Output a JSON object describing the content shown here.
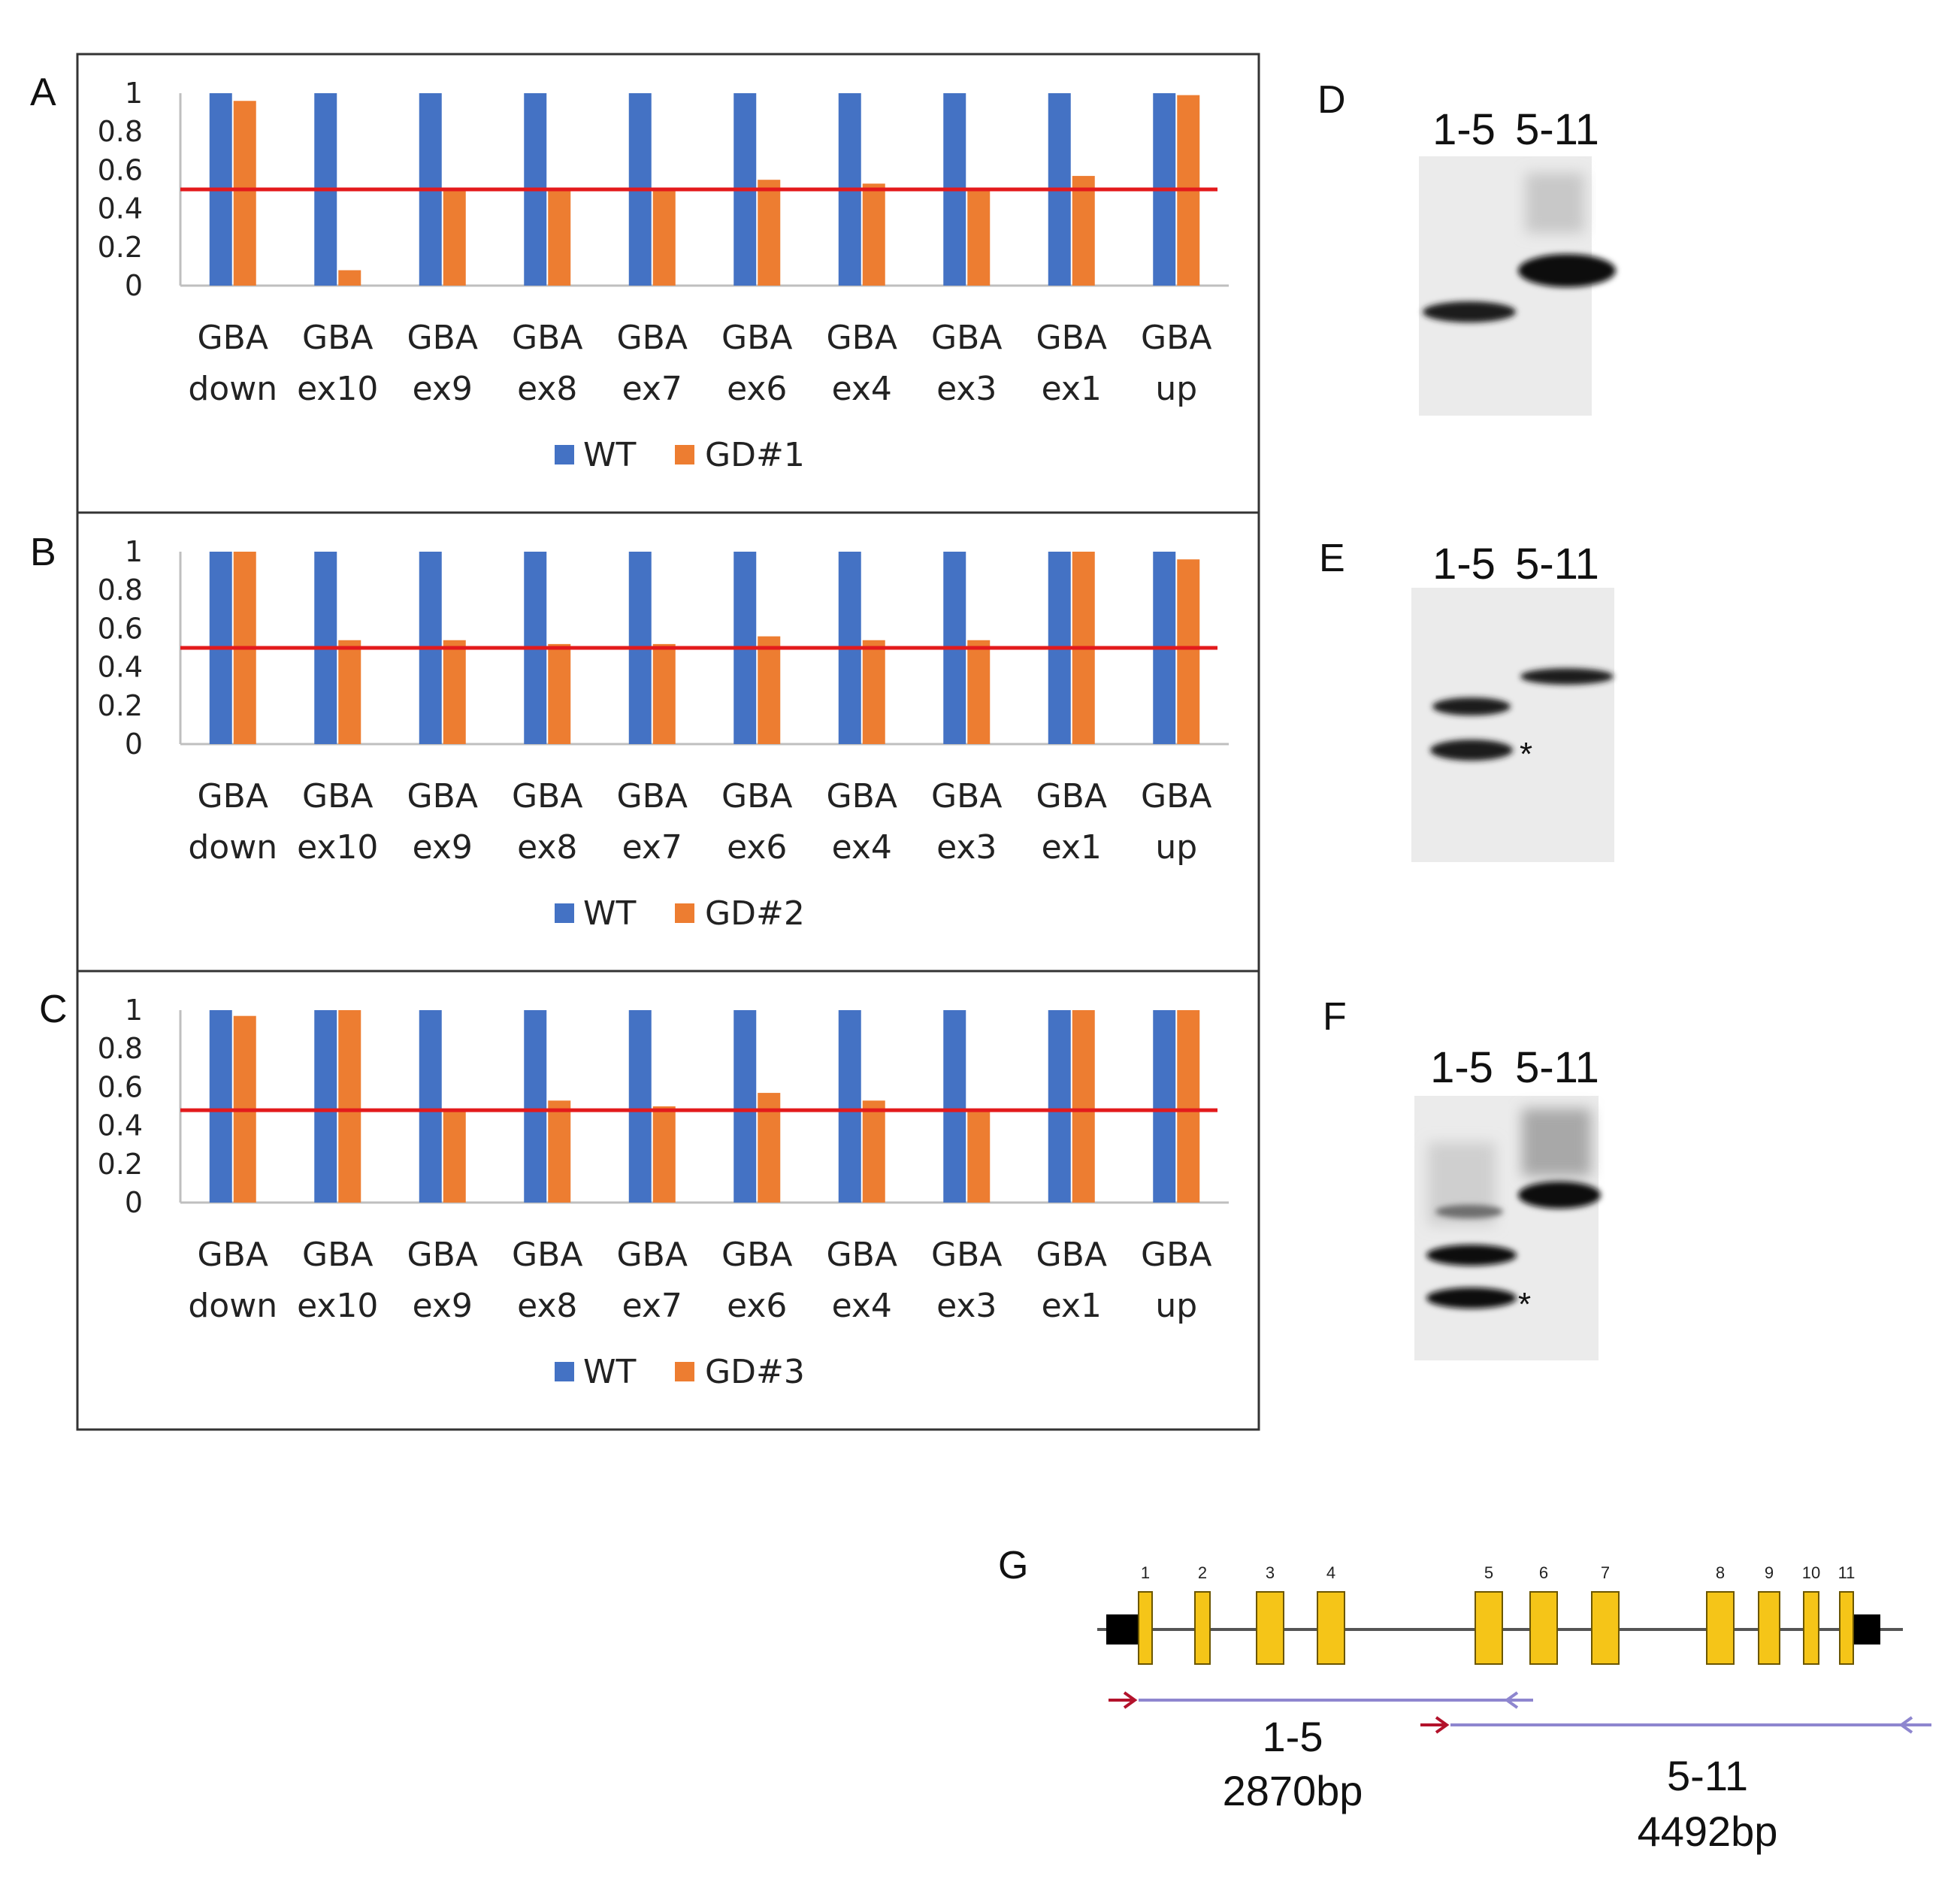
{
  "panels": {
    "A": "A",
    "B": "B",
    "C": "C",
    "D": "D",
    "E": "E",
    "F": "F",
    "G": "G"
  },
  "colors": {
    "wt": "#4472C4",
    "gd": "#ED7D31",
    "threshold": "#E31A1C"
  },
  "chart_data": [
    {
      "type": "bar",
      "panel": "A",
      "categories": [
        [
          "GBA",
          "down"
        ],
        [
          "GBA",
          "ex10"
        ],
        [
          "GBA",
          "ex9"
        ],
        [
          "GBA",
          "ex8"
        ],
        [
          "GBA",
          "ex7"
        ],
        [
          "GBA",
          "ex6"
        ],
        [
          "GBA",
          "ex4"
        ],
        [
          "GBA",
          "ex3"
        ],
        [
          "GBA",
          "ex1"
        ],
        [
          "GBA",
          "up"
        ]
      ],
      "series": [
        {
          "name": "WT",
          "values": [
            1,
            1,
            1,
            1,
            1,
            1,
            1,
            1,
            1,
            1
          ]
        },
        {
          "name": "GD#1",
          "values": [
            0.96,
            0.08,
            0.5,
            0.5,
            0.5,
            0.55,
            0.53,
            0.5,
            0.57,
            0.99
          ]
        }
      ],
      "threshold": 0.5,
      "yticks": [
        "1",
        "0.8",
        "0.6",
        "0.4",
        "0.2",
        "0"
      ],
      "ylim": [
        0,
        1
      ]
    },
    {
      "type": "bar",
      "panel": "B",
      "categories": [
        [
          "GBA",
          "down"
        ],
        [
          "GBA",
          "ex10"
        ],
        [
          "GBA",
          "ex9"
        ],
        [
          "GBA",
          "ex8"
        ],
        [
          "GBA",
          "ex7"
        ],
        [
          "GBA",
          "ex6"
        ],
        [
          "GBA",
          "ex4"
        ],
        [
          "GBA",
          "ex3"
        ],
        [
          "GBA",
          "ex1"
        ],
        [
          "GBA",
          "up"
        ]
      ],
      "series": [
        {
          "name": "WT",
          "values": [
            1,
            1,
            1,
            1,
            1,
            1,
            1,
            1,
            1,
            1
          ]
        },
        {
          "name": "GD#2",
          "values": [
            1.0,
            0.54,
            0.54,
            0.52,
            0.52,
            0.56,
            0.54,
            0.54,
            1.0,
            0.96
          ]
        }
      ],
      "threshold": 0.5,
      "yticks": [
        "1",
        "0.8",
        "0.6",
        "0.4",
        "0.2",
        "0"
      ],
      "ylim": [
        0,
        1
      ]
    },
    {
      "type": "bar",
      "panel": "C",
      "categories": [
        [
          "GBA",
          "down"
        ],
        [
          "GBA",
          "ex10"
        ],
        [
          "GBA",
          "ex9"
        ],
        [
          "GBA",
          "ex8"
        ],
        [
          "GBA",
          "ex7"
        ],
        [
          "GBA",
          "ex6"
        ],
        [
          "GBA",
          "ex4"
        ],
        [
          "GBA",
          "ex3"
        ],
        [
          "GBA",
          "ex1"
        ],
        [
          "GBA",
          "up"
        ]
      ],
      "series": [
        {
          "name": "WT",
          "values": [
            1,
            1,
            1,
            1,
            1,
            1,
            1,
            1,
            1,
            1
          ]
        },
        {
          "name": "GD#3",
          "values": [
            0.97,
            1.0,
            0.48,
            0.53,
            0.5,
            0.57,
            0.53,
            0.48,
            1.0,
            1.0
          ]
        }
      ],
      "threshold": 0.48,
      "yticks": [
        "1",
        "0.8",
        "0.6",
        "0.4",
        "0.2",
        "0"
      ],
      "ylim": [
        0,
        1
      ]
    }
  ],
  "gels": [
    {
      "panel": "D",
      "lanes": [
        "1-5",
        "5-11"
      ],
      "asterisk": ""
    },
    {
      "panel": "E",
      "lanes": [
        "1-5",
        "5-11"
      ],
      "asterisk": "*"
    },
    {
      "panel": "F",
      "lanes": [
        "1-5",
        "5-11"
      ],
      "asterisk": "*"
    }
  ],
  "gene_diagram": {
    "exons": [
      "1",
      "2",
      "3",
      "4",
      "5",
      "6",
      "7",
      "8",
      "9",
      "10",
      "11"
    ],
    "amplicon1": {
      "name": "1-5",
      "size": "2870bp"
    },
    "amplicon2": {
      "name": "5-11",
      "size": "4492bp"
    }
  }
}
